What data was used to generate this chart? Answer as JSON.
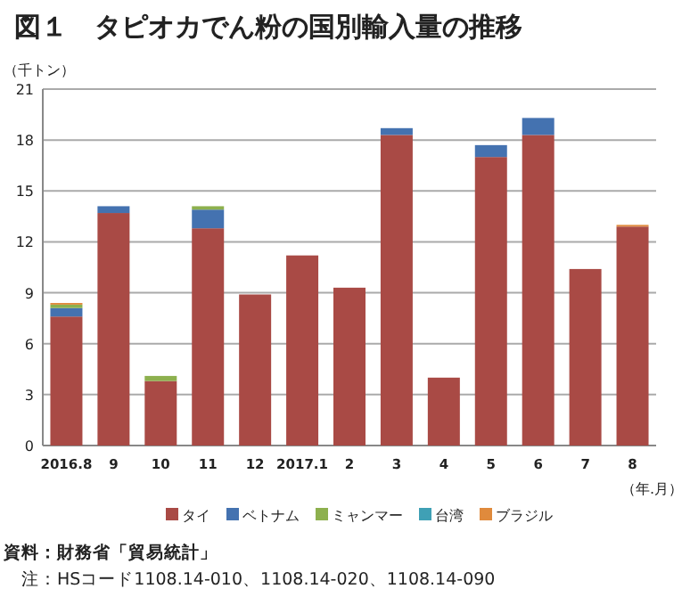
{
  "chart_data": {
    "type": "bar",
    "title": "図１　タピオカでん粉の国別輸入量の推移",
    "ylabel": "（千トン）",
    "xlabel": "（年.月）",
    "stacked": true,
    "grid": "y",
    "legend": "bottom",
    "categories": [
      "2016.8",
      "9",
      "10",
      "11",
      "12",
      "2017.1",
      "2",
      "3",
      "4",
      "5",
      "6",
      "7",
      "8"
    ],
    "series": [
      {
        "name": "タイ",
        "color": "#a94a45",
        "values": [
          7.6,
          13.7,
          3.8,
          12.8,
          8.9,
          11.2,
          9.3,
          18.3,
          4.0,
          17.0,
          18.3,
          10.4,
          12.9
        ]
      },
      {
        "name": "ベトナム",
        "color": "#4472b0",
        "values": [
          0.5,
          0.4,
          0,
          1.1,
          0,
          0,
          0,
          0.4,
          0,
          0.7,
          1.0,
          0,
          0
        ]
      },
      {
        "name": "ミャンマー",
        "color": "#8db04e",
        "values": [
          0.2,
          0,
          0.3,
          0.2,
          0,
          0,
          0,
          0,
          0,
          0,
          0,
          0,
          0
        ]
      },
      {
        "name": "台湾",
        "color": "#3fa0b5",
        "values": [
          0,
          0,
          0,
          0,
          0,
          0,
          0,
          0,
          0,
          0,
          0,
          0,
          0
        ]
      },
      {
        "name": "ブラジル",
        "color": "#e08a3c",
        "values": [
          0.1,
          0,
          0,
          0,
          0,
          0,
          0,
          0,
          0,
          0,
          0,
          0,
          0.1
        ]
      }
    ],
    "ylim": [
      0,
      21
    ],
    "yticks": [
      0,
      3,
      6,
      9,
      12,
      15,
      18,
      21
    ],
    "annotations": [
      "資料：財務省「貿易統計」",
      "注：HSコード1108.14-010、1108.14-020、1108.14-090"
    ]
  }
}
